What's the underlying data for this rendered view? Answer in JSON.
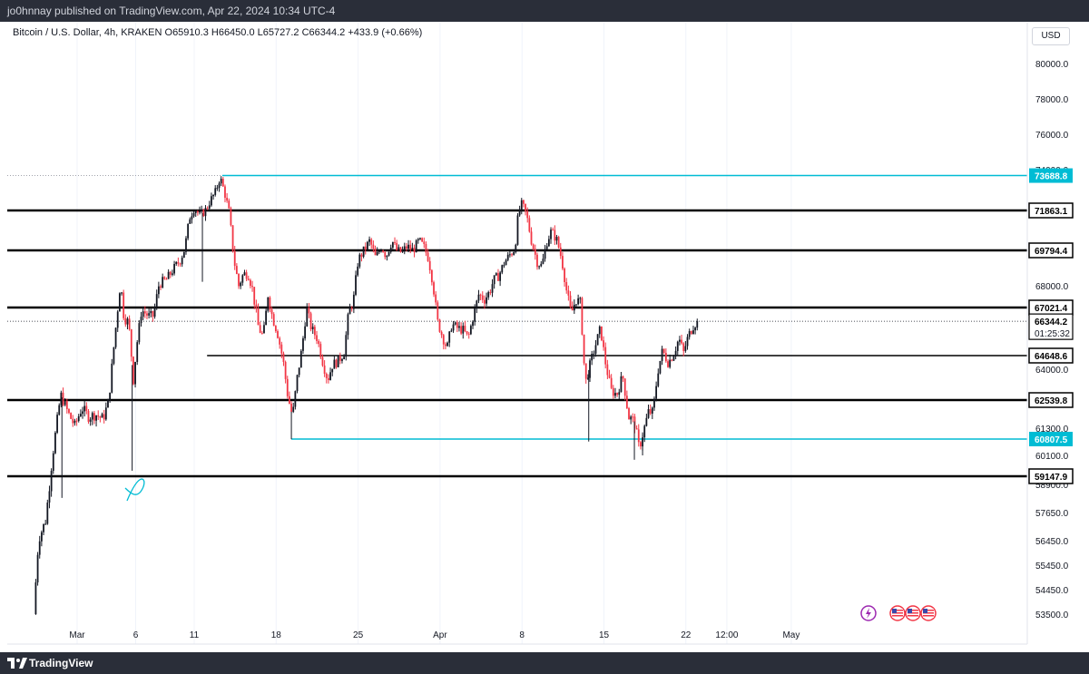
{
  "header": {
    "publisher_line": "jo0hnnay published on TradingView.com, Apr 22, 2024 10:34 UTC-4"
  },
  "symbol": {
    "legend": "Bitcoin / U.S. Dollar, 4h, KRAKEN  O65910.3  H66450.0  L65727.2  C66344.2  +433.9 (+0.66%)"
  },
  "currency_label": "USD",
  "footer": {
    "brand": "TradingView"
  },
  "colors": {
    "up": "#131722",
    "down": "#f23645",
    "cyan": "#00bcd4",
    "black_level": "#000000"
  },
  "chart_data": {
    "type": "candlestick",
    "symbol": "Bitcoin / U.S. Dollar",
    "interval": "4h",
    "exchange": "KRAKEN",
    "ohlc_last": {
      "open": 65910.3,
      "high": 66450.0,
      "low": 65727.2,
      "close": 66344.2,
      "change": 433.9,
      "change_pct": 0.66
    },
    "y_ticks": [
      "80000.0",
      "78000.0",
      "76000.0",
      "74000.0",
      "68000.0",
      "64000.0",
      "61300.0",
      "60100.0",
      "58900.0",
      "57650.0",
      "56450.0",
      "55450.0",
      "54450.0",
      "53500.0"
    ],
    "y_tick_values": [
      80000,
      78000,
      76000,
      74000,
      68000,
      64000,
      61300,
      60100,
      58900,
      57650,
      56450,
      55450,
      54450,
      53500
    ],
    "x_ticks": [
      {
        "label": "Mar",
        "day": 1
      },
      {
        "label": "6",
        "day": 6
      },
      {
        "label": "11",
        "day": 11
      },
      {
        "label": "18",
        "day": 18
      },
      {
        "label": "25",
        "day": 25
      },
      {
        "label": "Apr",
        "day": 32
      },
      {
        "label": "8",
        "day": 39
      },
      {
        "label": "15",
        "day": 46
      },
      {
        "label": "22",
        "day": 53
      },
      {
        "label": "12:00",
        "day": 56.5
      },
      {
        "label": "May",
        "day": 62
      }
    ],
    "levels": [
      {
        "price": 73688.8,
        "label": "73688.8",
        "color": "cyan",
        "startDay": 13.4
      },
      {
        "price": 71863.1,
        "label": "71863.1",
        "color": "black",
        "startDay": 0
      },
      {
        "price": 69794.4,
        "label": "69794.4",
        "color": "black",
        "startDay": 0
      },
      {
        "price": 67021.4,
        "label": "67021.4",
        "color": "black",
        "startDay": 0
      },
      {
        "price": 64648.6,
        "label": "64648.6",
        "color": "black",
        "startDay": 12.1
      },
      {
        "price": 62539.8,
        "label": "62539.8",
        "color": "black",
        "startDay": 0
      },
      {
        "price": 60807.5,
        "label": "60807.5",
        "color": "cyan",
        "startDay": 19.3
      },
      {
        "price": 59147.9,
        "label": "59147.9",
        "color": "black",
        "startDay": 0
      }
    ],
    "current_price": {
      "price": 66344.2,
      "label": "66344.2",
      "countdown": "01:25:32"
    },
    "path": [
      [
        -2.7,
        53500
      ],
      [
        -2.3,
        56500
      ],
      [
        -1.7,
        57300
      ],
      [
        -1.0,
        60500
      ],
      [
        -0.4,
        62800
      ],
      [
        0.2,
        62000
      ],
      [
        0.8,
        61400
      ],
      [
        1.4,
        62200
      ],
      [
        2.0,
        61800
      ],
      [
        2.6,
        61900
      ],
      [
        3.2,
        61700
      ],
      [
        3.7,
        62500
      ],
      [
        4.0,
        64300
      ],
      [
        4.4,
        66600
      ],
      [
        4.7,
        68200
      ],
      [
        5.0,
        66500
      ],
      [
        5.4,
        66300
      ],
      [
        5.8,
        63500
      ],
      [
        6.1,
        65200
      ],
      [
        6.5,
        66900
      ],
      [
        7.1,
        66600
      ],
      [
        7.5,
        66600
      ],
      [
        8.0,
        68100
      ],
      [
        8.6,
        68300
      ],
      [
        9.3,
        68900
      ],
      [
        9.8,
        69300
      ],
      [
        10.2,
        69900
      ],
      [
        10.6,
        71500
      ],
      [
        11.0,
        72000
      ],
      [
        11.5,
        71600
      ],
      [
        12.0,
        71900
      ],
      [
        12.3,
        72300
      ],
      [
        12.8,
        72800
      ],
      [
        13.2,
        73600
      ],
      [
        13.6,
        72800
      ],
      [
        14.0,
        71700
      ],
      [
        14.4,
        69300
      ],
      [
        14.8,
        68000
      ],
      [
        15.2,
        68600
      ],
      [
        15.6,
        68600
      ],
      [
        16.0,
        67800
      ],
      [
        16.5,
        66000
      ],
      [
        16.9,
        65600
      ],
      [
        17.3,
        67600
      ],
      [
        17.7,
        66500
      ],
      [
        18.1,
        65800
      ],
      [
        18.6,
        64400
      ],
      [
        19.0,
        62700
      ],
      [
        19.4,
        61800
      ],
      [
        19.8,
        63600
      ],
      [
        20.2,
        65000
      ],
      [
        20.6,
        67000
      ],
      [
        21.0,
        66000
      ],
      [
        21.5,
        65500
      ],
      [
        22.0,
        64300
      ],
      [
        22.4,
        63500
      ],
      [
        22.8,
        64200
      ],
      [
        23.3,
        64400
      ],
      [
        23.8,
        64800
      ],
      [
        24.2,
        66800
      ],
      [
        24.6,
        67300
      ],
      [
        25.0,
        69300
      ],
      [
        25.5,
        69800
      ],
      [
        26.0,
        70300
      ],
      [
        26.5,
        69400
      ],
      [
        27.0,
        70000
      ],
      [
        27.4,
        69500
      ],
      [
        27.9,
        70300
      ],
      [
        28.3,
        69800
      ],
      [
        28.7,
        69700
      ],
      [
        29.2,
        70000
      ],
      [
        29.7,
        69800
      ],
      [
        30.2,
        70300
      ],
      [
        30.6,
        70000
      ],
      [
        31.0,
        69400
      ],
      [
        31.4,
        68100
      ],
      [
        31.8,
        66300
      ],
      [
        32.2,
        65600
      ],
      [
        32.6,
        65000
      ],
      [
        33.0,
        66200
      ],
      [
        33.5,
        66000
      ],
      [
        34.0,
        65900
      ],
      [
        34.4,
        65500
      ],
      [
        34.8,
        66500
      ],
      [
        35.3,
        67600
      ],
      [
        35.8,
        67400
      ],
      [
        36.2,
        67700
      ],
      [
        36.6,
        68300
      ],
      [
        37.0,
        68500
      ],
      [
        37.5,
        69200
      ],
      [
        38.0,
        69600
      ],
      [
        38.4,
        69900
      ],
      [
        38.7,
        71800
      ],
      [
        39.0,
        72200
      ],
      [
        39.4,
        71600
      ],
      [
        39.8,
        70300
      ],
      [
        40.3,
        69200
      ],
      [
        40.7,
        69000
      ],
      [
        41.1,
        70200
      ],
      [
        41.5,
        70800
      ],
      [
        42.0,
        70300
      ],
      [
        42.4,
        69300
      ],
      [
        42.8,
        67800
      ],
      [
        43.2,
        66700
      ],
      [
        43.6,
        67400
      ],
      [
        44.0,
        67200
      ],
      [
        44.4,
        63300
      ],
      [
        44.9,
        64400
      ],
      [
        45.3,
        65200
      ],
      [
        45.7,
        66000
      ],
      [
        46.1,
        64400
      ],
      [
        46.6,
        63000
      ],
      [
        47.1,
        62800
      ],
      [
        47.6,
        63700
      ],
      [
        48.1,
        61800
      ],
      [
        48.6,
        61600
      ],
      [
        49.0,
        60400
      ],
      [
        49.4,
        61200
      ],
      [
        49.8,
        62000
      ],
      [
        50.2,
        62000
      ],
      [
        50.6,
        63900
      ],
      [
        51.0,
        64900
      ],
      [
        51.5,
        64300
      ],
      [
        52.0,
        64800
      ],
      [
        52.4,
        65500
      ],
      [
        52.8,
        64800
      ],
      [
        53.2,
        65600
      ],
      [
        53.6,
        66100
      ],
      [
        54.0,
        66344.2
      ]
    ],
    "spikes": [
      {
        "day": -0.3,
        "low": 58300
      },
      {
        "day": 5.7,
        "low": 59400
      },
      {
        "day": 11.7,
        "low": 68200
      },
      {
        "day": 19.3,
        "low": 60800
      },
      {
        "day": 44.7,
        "low": 60700
      },
      {
        "day": 48.6,
        "low": 59900
      },
      {
        "day": 49.3,
        "low": 60100
      }
    ]
  }
}
